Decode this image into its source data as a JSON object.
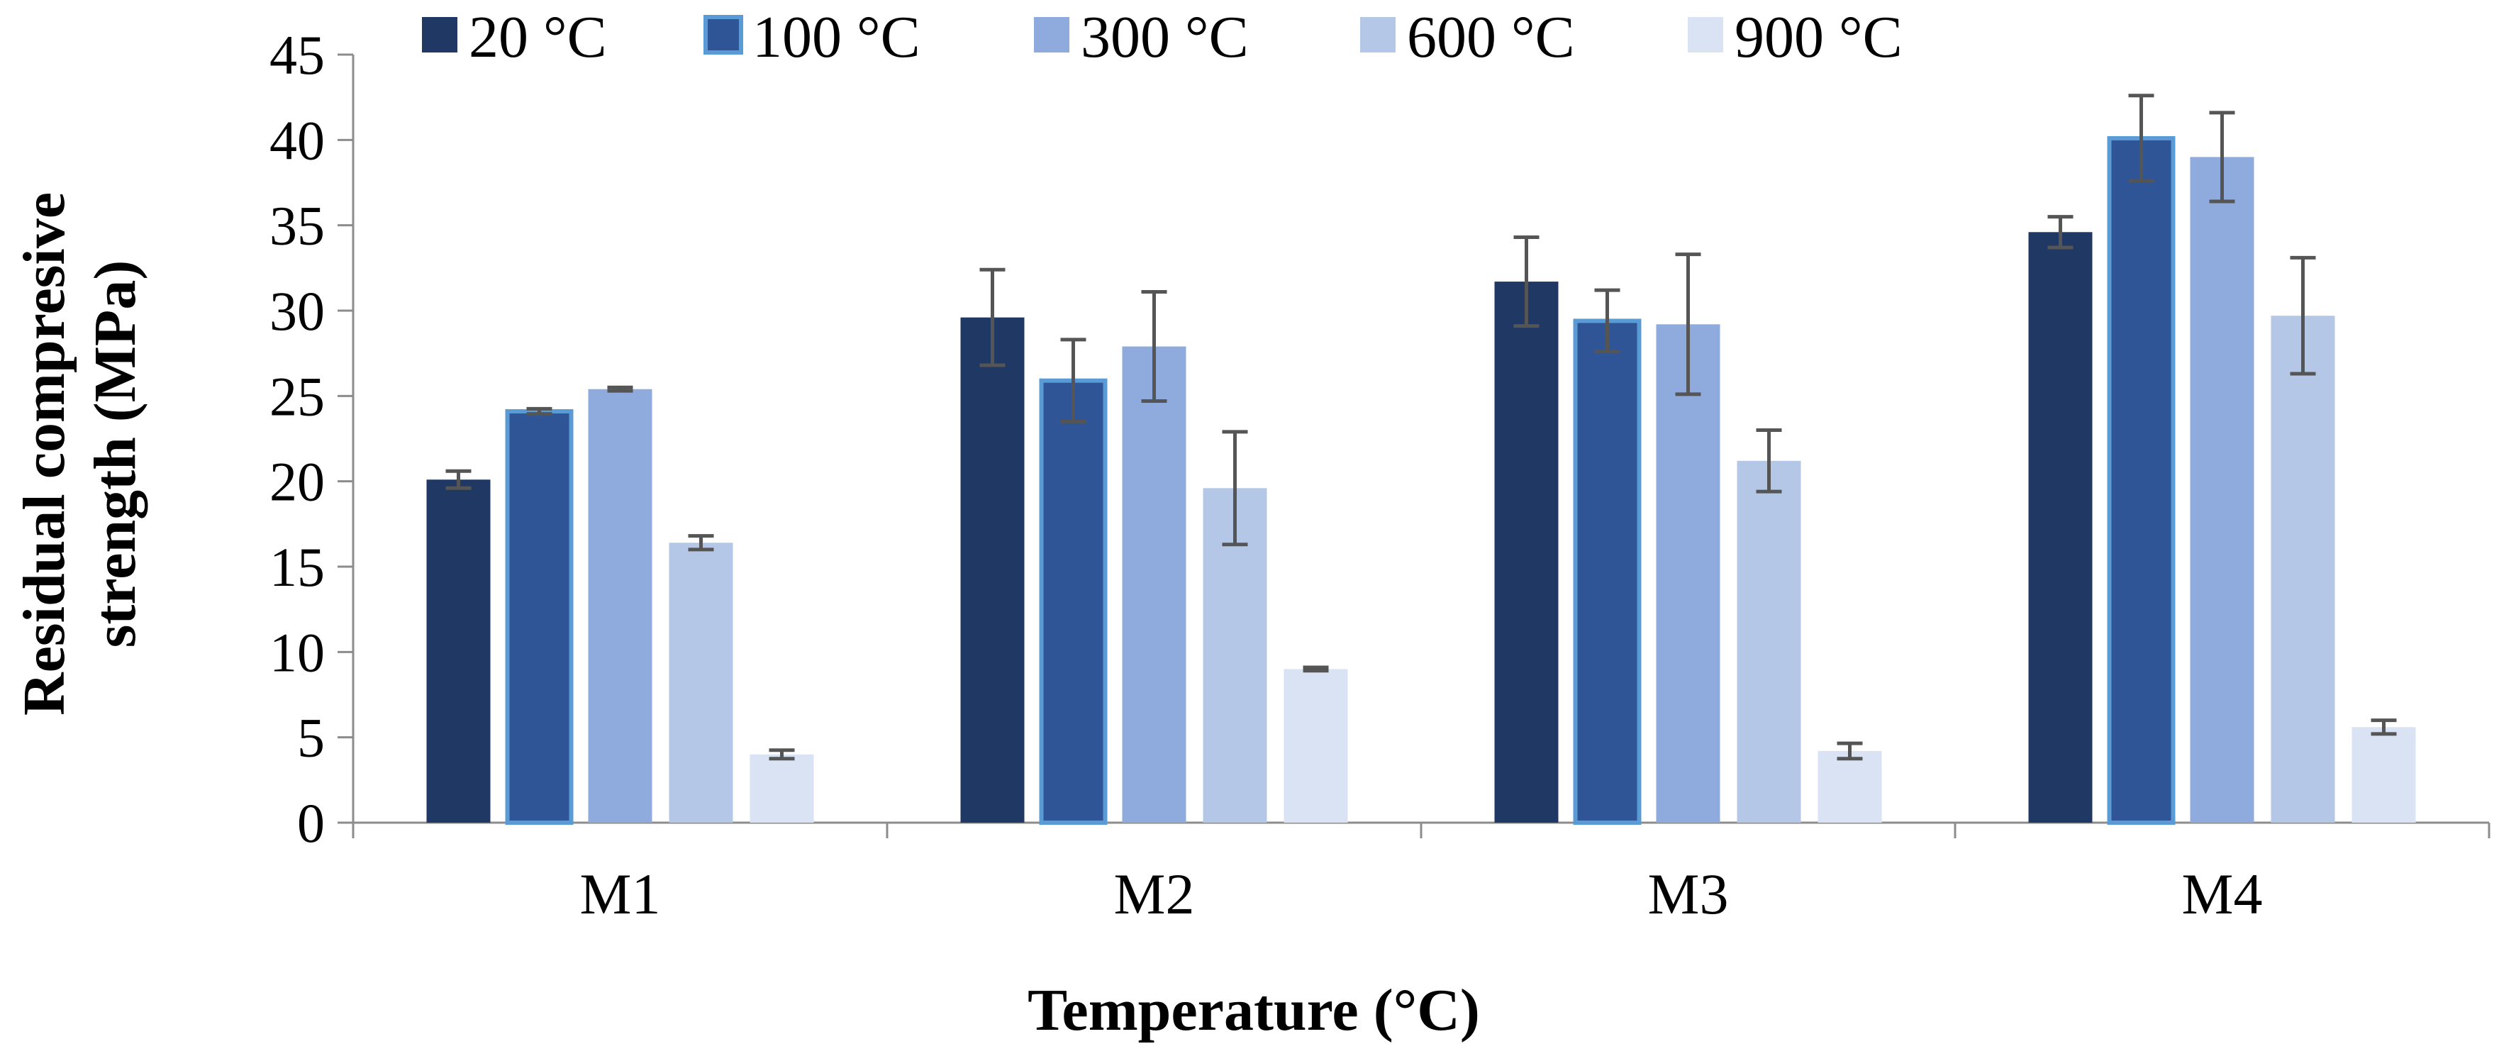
{
  "chart_data": {
    "type": "bar",
    "title": "",
    "xlabel": "Temperature (°C)",
    "ylabel_lines": [
      "Residual compresive",
      "strength (MPa)"
    ],
    "ylim": [
      0,
      45
    ],
    "yticks": [
      0,
      5,
      10,
      15,
      20,
      25,
      30,
      35,
      40,
      45
    ],
    "grid": false,
    "legend_position": "top",
    "categories": [
      "M1",
      "M2",
      "M3",
      "M4"
    ],
    "series": [
      {
        "name": "20 °C",
        "color": "#203864",
        "values": [
          20.1,
          29.6,
          31.7,
          34.6
        ],
        "errors": [
          0.5,
          2.8,
          2.6,
          0.9
        ]
      },
      {
        "name": "100 °C",
        "color": "#2F5597",
        "outline": "#5B9BD5",
        "values": [
          24.1,
          25.9,
          29.4,
          40.1
        ],
        "errors": [
          0.15,
          2.4,
          1.8,
          2.5
        ]
      },
      {
        "name": "300 °C",
        "color": "#8FAADC",
        "values": [
          25.4,
          27.9,
          29.2,
          39.0
        ],
        "errors": [
          0.1,
          3.2,
          4.1,
          2.6
        ]
      },
      {
        "name": "600 °C",
        "color": "#B4C7E7",
        "values": [
          16.4,
          19.6,
          21.2,
          29.7
        ],
        "errors": [
          0.4,
          3.3,
          1.8,
          3.4
        ]
      },
      {
        "name": "900 °C",
        "color": "#DAE3F3",
        "values": [
          4.0,
          9.0,
          4.2,
          5.6
        ],
        "errors": [
          0.25,
          0.1,
          0.45,
          0.4
        ]
      }
    ]
  }
}
